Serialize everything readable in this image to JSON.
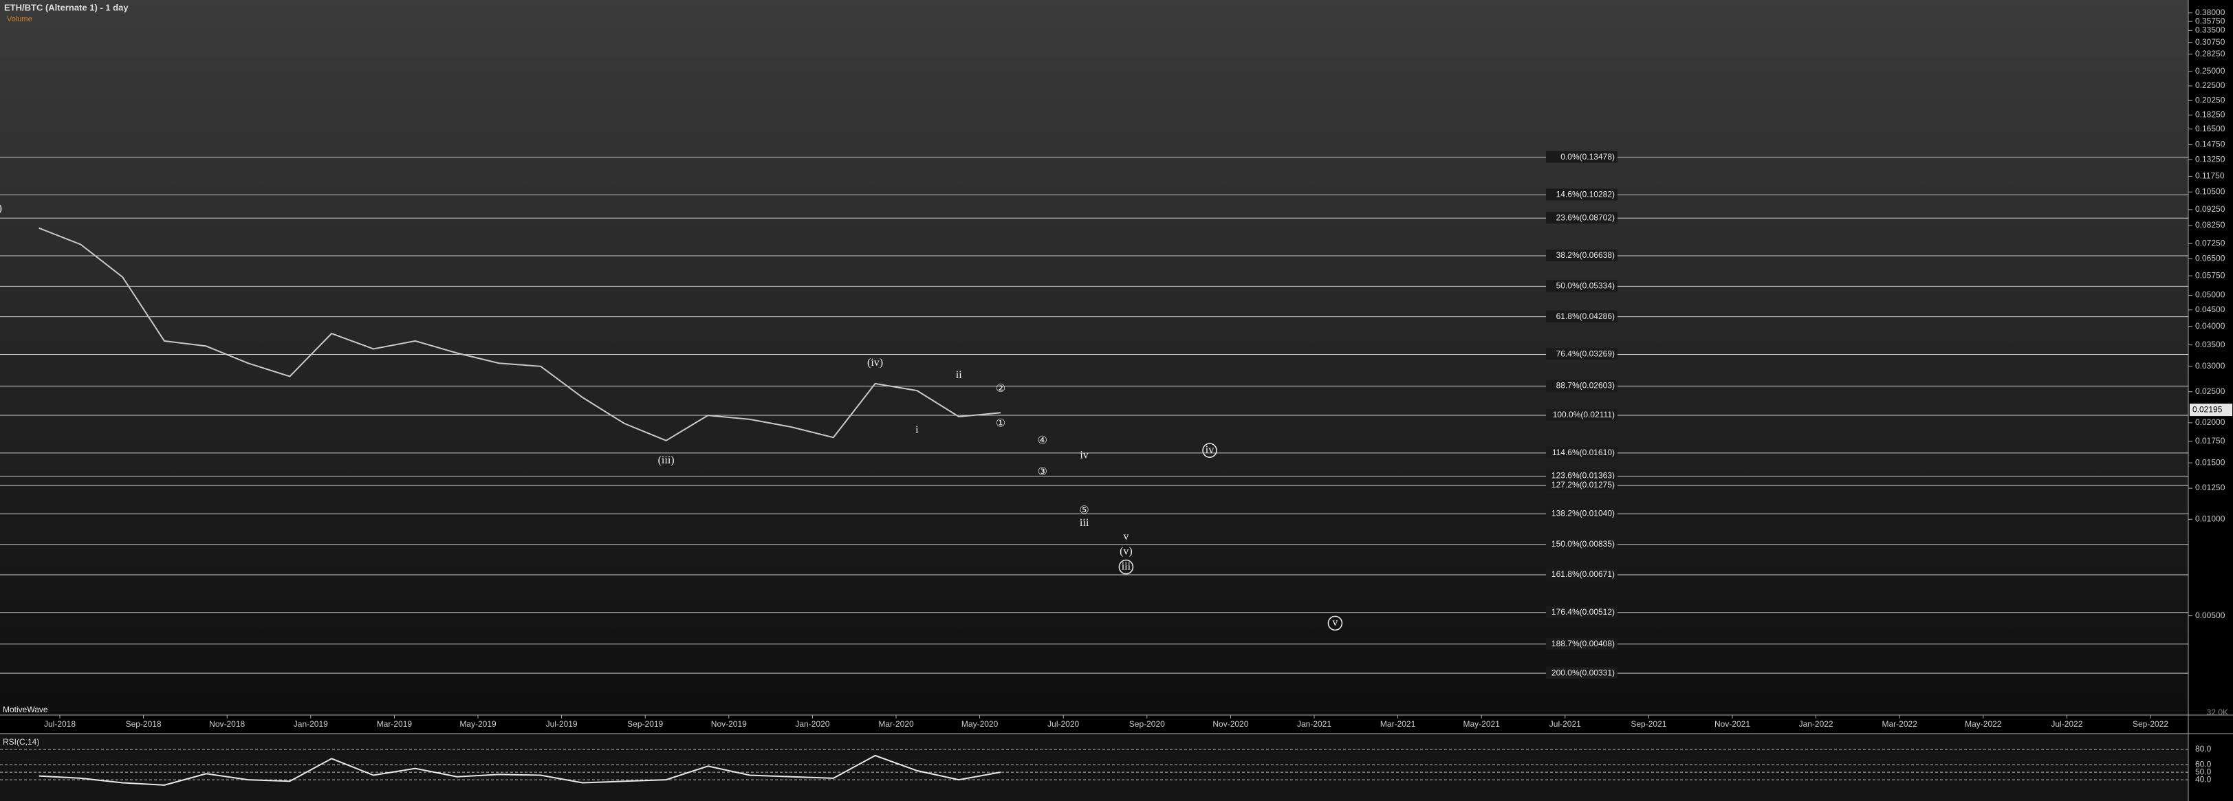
{
  "chart_data": [
    {
      "type": "line",
      "title": "ETH/BTC (Alternate 1) - 1 day",
      "subtitle": "Volume",
      "watermark": "MotiveWave",
      "log_scale": true,
      "color": "#c9c9c9",
      "x": [
        "Jun-2018",
        "Jul-2018",
        "Aug-2018",
        "Sep-2018",
        "Oct-2018",
        "Nov-2018",
        "Dec-2018",
        "Jan-2019",
        "Feb-2019",
        "Mar-2019",
        "Apr-2019",
        "May-2019",
        "Jun-2019",
        "Jul-2019",
        "Aug-2019",
        "Sep-2019",
        "Oct-2019",
        "Nov-2019",
        "Dec-2019",
        "Jan-2020",
        "Feb-2020",
        "Mar-2020",
        "Apr-2020",
        "May-2020"
      ],
      "values": [
        0.081,
        0.072,
        0.057,
        0.036,
        0.0347,
        0.0307,
        0.0279,
        0.038,
        0.034,
        0.036,
        0.033,
        0.0307,
        0.03,
        0.024,
        0.0199,
        0.0176,
        0.0211,
        0.0205,
        0.0194,
        0.018,
        0.0265,
        0.0252,
        0.0209,
        0.0215
      ],
      "ylim": [
        0.00245,
        0.417
      ],
      "yticks": [
        {
          "value": 0.38,
          "label": "0.38000"
        },
        {
          "value": 0.3575,
          "label": "0.35750"
        },
        {
          "value": 0.335,
          "label": "0.33500"
        },
        {
          "value": 0.3075,
          "label": "0.30750"
        },
        {
          "value": 0.2825,
          "label": "0.28250"
        },
        {
          "value": 0.25,
          "label": "0.25000"
        },
        {
          "value": 0.225,
          "label": "0.22500"
        },
        {
          "value": 0.2025,
          "label": "0.20250"
        },
        {
          "value": 0.1825,
          "label": "0.18250"
        },
        {
          "value": 0.165,
          "label": "0.16500"
        },
        {
          "value": 0.1475,
          "label": "0.14750"
        },
        {
          "value": 0.1325,
          "label": "0.13250"
        },
        {
          "value": 0.1175,
          "label": "0.11750"
        },
        {
          "value": 0.105,
          "label": "0.10500"
        },
        {
          "value": 0.0925,
          "label": "0.09250"
        },
        {
          "value": 0.0825,
          "label": "0.08250"
        },
        {
          "value": 0.0725,
          "label": "0.07250"
        },
        {
          "value": 0.065,
          "label": "0.06500"
        },
        {
          "value": 0.0575,
          "label": "0.05750"
        },
        {
          "value": 0.05,
          "label": "0.05000"
        },
        {
          "value": 0.045,
          "label": "0.04500"
        },
        {
          "value": 0.04,
          "label": "0.04000"
        },
        {
          "value": 0.035,
          "label": "0.03500"
        },
        {
          "value": 0.03,
          "label": "0.03000"
        },
        {
          "value": 0.025,
          "label": "0.02500"
        },
        {
          "value": 0.02,
          "label": "0.02000"
        },
        {
          "value": 0.0175,
          "label": "0.01750"
        },
        {
          "value": 0.015,
          "label": "0.01500"
        },
        {
          "value": 0.0125,
          "label": "0.01250"
        },
        {
          "value": 0.01,
          "label": "0.01000"
        },
        {
          "value": 0.005,
          "label": "0.00500"
        }
      ],
      "xticks": [
        "Jul-2018",
        "Sep-2018",
        "Nov-2018",
        "Jan-2019",
        "Mar-2019",
        "May-2019",
        "Jul-2019",
        "Sep-2019",
        "Nov-2019",
        "Jan-2020",
        "Mar-2020",
        "May-2020",
        "Jul-2020",
        "Sep-2020",
        "Nov-2020",
        "Jan-2021",
        "Mar-2021",
        "May-2021",
        "Jul-2021",
        "Sep-2021",
        "Nov-2021",
        "Jan-2022",
        "Mar-2022",
        "May-2022",
        "Jul-2022",
        "Sep-2022"
      ],
      "last_price": {
        "value": 0.02195,
        "label": "0.02195"
      },
      "volume_label": "32.0K",
      "fib_levels": [
        {
          "label": "0.0%(0.13478)",
          "value": 0.13478
        },
        {
          "label": "14.6%(0.10282)",
          "value": 0.10282
        },
        {
          "label": "23.6%(0.08702)",
          "value": 0.08702
        },
        {
          "label": "38.2%(0.06638)",
          "value": 0.06638
        },
        {
          "label": "50.0%(0.05334)",
          "value": 0.05334
        },
        {
          "label": "61.8%(0.04286)",
          "value": 0.04286
        },
        {
          "label": "76.4%(0.03269)",
          "value": 0.03269
        },
        {
          "label": "88.7%(0.02603)",
          "value": 0.02603
        },
        {
          "label": "100.0%(0.02111)",
          "value": 0.02111
        },
        {
          "label": "114.6%(0.01610)",
          "value": 0.0161
        },
        {
          "label": "123.6%(0.01363)",
          "value": 0.01363
        },
        {
          "label": "127.2%(0.01275)",
          "value": 0.01275
        },
        {
          "label": "138.2%(0.01040)",
          "value": 0.0104
        },
        {
          "label": "150.0%(0.00835)",
          "value": 0.00835
        },
        {
          "label": "161.8%(0.00671)",
          "value": 0.00671
        },
        {
          "label": "176.4%(0.00512)",
          "value": 0.00512
        },
        {
          "label": "188.7%(0.00408)",
          "value": 0.00408
        },
        {
          "label": "200.0%(0.00331)",
          "value": 0.00331
        }
      ],
      "waves": [
        {
          "label": "ii)",
          "x": "May-2018",
          "y": 0.093,
          "circled": false
        },
        {
          "label": "(iii)",
          "x": "Sep-2019",
          "y": 0.0152,
          "circled": false
        },
        {
          "label": "(iv)",
          "x": "Feb-2020",
          "y": 0.0307,
          "circled": false
        },
        {
          "label": "i",
          "x": "Mar-2020",
          "y": 0.0189,
          "circled": false
        },
        {
          "label": "ii",
          "x": "Apr-2020",
          "y": 0.0281,
          "circled": false
        },
        {
          "label": "①",
          "x": "May-2020",
          "y": 0.0198,
          "circled": false
        },
        {
          "label": "②",
          "x": "May-2020",
          "y": 0.0254,
          "circled": false
        },
        {
          "label": "③",
          "x": "Jun-2020",
          "y": 0.014,
          "circled": false
        },
        {
          "label": "④",
          "x": "Jun-2020",
          "y": 0.0175,
          "circled": false
        },
        {
          "label": "⑤",
          "x": "Jul-2020",
          "y": 0.0106,
          "circled": false
        },
        {
          "label": "iii",
          "x": "Jul-2020",
          "y": 0.0097,
          "circled": false
        },
        {
          "label": "iv",
          "x": "Jul-2020",
          "y": 0.0158,
          "circled": false
        },
        {
          "label": "v",
          "x": "Aug-2020",
          "y": 0.0088,
          "circled": false
        },
        {
          "label": "(v)",
          "x": "Aug-2020",
          "y": 0.0079,
          "circled": false
        },
        {
          "label": "iii",
          "x": "Aug-2020",
          "y": 0.0071,
          "circled": true
        },
        {
          "label": "iv",
          "x": "Oct-2020",
          "y": 0.0164,
          "circled": true
        },
        {
          "label": "v",
          "x": "Jan-2021",
          "y": 0.00474,
          "circled": true
        }
      ]
    },
    {
      "type": "line",
      "title": "RSI(C,14)",
      "color": "#e8e8e8",
      "x": [
        "Jun-2018",
        "Jul-2018",
        "Aug-2018",
        "Sep-2018",
        "Oct-2018",
        "Nov-2018",
        "Dec-2018",
        "Jan-2019",
        "Feb-2019",
        "Mar-2019",
        "Apr-2019",
        "May-2019",
        "Jun-2019",
        "Jul-2019",
        "Aug-2019",
        "Sep-2019",
        "Oct-2019",
        "Nov-2019",
        "Dec-2019",
        "Jan-2020",
        "Feb-2020",
        "Mar-2020",
        "Apr-2020",
        "May-2020"
      ],
      "values": [
        45,
        42,
        36,
        33,
        48,
        40,
        38,
        68,
        46,
        55,
        44,
        47,
        46,
        36,
        38,
        40,
        58,
        46,
        44,
        42,
        72,
        52,
        40,
        50
      ],
      "ylim": [
        12,
        100
      ],
      "yticks": [
        {
          "value": 80,
          "label": "80.0"
        },
        {
          "value": 60,
          "label": "60.0"
        },
        {
          "value": 50,
          "label": "50.0"
        },
        {
          "value": 40,
          "label": "40.0"
        }
      ],
      "grid": true
    }
  ]
}
